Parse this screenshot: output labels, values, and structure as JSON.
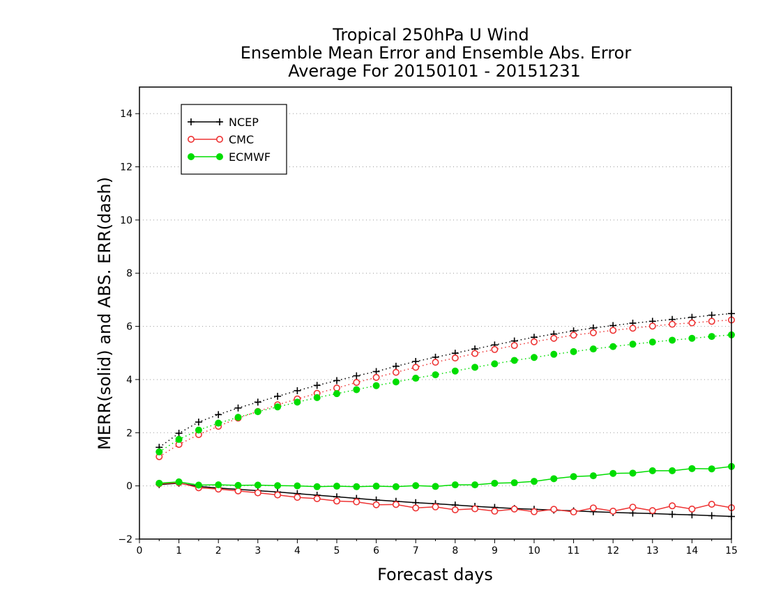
{
  "chart_data": {
    "type": "line",
    "title_lines": [
      "Tropical 250hPa U Wind",
      "Ensemble Mean Error and Ensemble Abs. Error",
      "Average For 20150101 - 20151231"
    ],
    "xlabel": "Forecast days",
    "ylabel": "MERR(solid) and ABS. ERR(dash)",
    "xlim": [
      0,
      15
    ],
    "ylim": [
      -2,
      15
    ],
    "x_ticks": [
      "0",
      "1",
      "2",
      "3",
      "4",
      "5",
      "6",
      "7",
      "8",
      "9",
      "10",
      "11",
      "12",
      "13",
      "14",
      "15"
    ],
    "y_ticks": [
      "−2",
      "0",
      "2",
      "4",
      "6",
      "8",
      "10",
      "12",
      "14"
    ],
    "y_tick_values": [
      -2,
      0,
      2,
      4,
      6,
      8,
      10,
      12,
      14
    ],
    "grid": "horizontal dotted",
    "legend_position": "top-left",
    "x": [
      0.5,
      1,
      1.5,
      2,
      2.5,
      3,
      3.5,
      4,
      4.5,
      5,
      5.5,
      6,
      6.5,
      7,
      7.5,
      8,
      8.5,
      9,
      9.5,
      10,
      10.5,
      11,
      11.5,
      12,
      12.5,
      13,
      13.5,
      14,
      14.5,
      15
    ],
    "series": [
      {
        "name": "NCEP",
        "color": "#000000",
        "marker": "plus",
        "merr": [
          0.05,
          0.1,
          -0.02,
          -0.08,
          -0.13,
          -0.18,
          -0.23,
          -0.29,
          -0.35,
          -0.41,
          -0.47,
          -0.53,
          -0.58,
          -0.63,
          -0.67,
          -0.72,
          -0.77,
          -0.81,
          -0.85,
          -0.88,
          -0.91,
          -0.94,
          -0.97,
          -1.0,
          -1.02,
          -1.04,
          -1.07,
          -1.09,
          -1.12,
          -1.15
        ],
        "abs_err": [
          1.45,
          1.98,
          2.4,
          2.68,
          2.93,
          3.15,
          3.37,
          3.58,
          3.78,
          3.96,
          4.14,
          4.3,
          4.5,
          4.68,
          4.84,
          4.99,
          5.15,
          5.3,
          5.45,
          5.59,
          5.71,
          5.83,
          5.94,
          6.03,
          6.12,
          6.19,
          6.26,
          6.34,
          6.42,
          6.48
        ]
      },
      {
        "name": "CMC",
        "color": "#ee3333",
        "marker": "open-circle",
        "merr": [
          0.08,
          0.12,
          -0.07,
          -0.12,
          -0.19,
          -0.26,
          -0.34,
          -0.43,
          -0.48,
          -0.57,
          -0.6,
          -0.71,
          -0.7,
          -0.83,
          -0.79,
          -0.9,
          -0.86,
          -0.95,
          -0.87,
          -0.97,
          -0.88,
          -0.98,
          -0.83,
          -0.95,
          -0.8,
          -0.93,
          -0.75,
          -0.87,
          -0.69,
          -0.82
        ],
        "abs_err": [
          1.1,
          1.56,
          1.93,
          2.24,
          2.55,
          2.8,
          3.05,
          3.27,
          3.48,
          3.68,
          3.89,
          4.08,
          4.27,
          4.46,
          4.65,
          4.81,
          4.98,
          5.13,
          5.28,
          5.42,
          5.55,
          5.67,
          5.76,
          5.85,
          5.93,
          6.01,
          6.08,
          6.13,
          6.19,
          6.24
        ]
      },
      {
        "name": "ECMWF",
        "color": "#00dd00",
        "marker": "filled-circle",
        "merr": [
          0.1,
          0.15,
          0.03,
          0.04,
          0.02,
          0.03,
          0.01,
          0.0,
          -0.03,
          -0.01,
          -0.03,
          -0.01,
          -0.03,
          0.01,
          -0.02,
          0.04,
          0.04,
          0.1,
          0.12,
          0.17,
          0.27,
          0.35,
          0.38,
          0.47,
          0.48,
          0.57,
          0.57,
          0.65,
          0.64,
          0.73
        ],
        "abs_err": [
          1.28,
          1.75,
          2.1,
          2.36,
          2.58,
          2.79,
          2.97,
          3.15,
          3.32,
          3.47,
          3.62,
          3.77,
          3.91,
          4.05,
          4.18,
          4.32,
          4.46,
          4.59,
          4.72,
          4.83,
          4.95,
          5.05,
          5.15,
          5.24,
          5.33,
          5.41,
          5.48,
          5.55,
          5.62,
          5.68
        ]
      }
    ]
  }
}
